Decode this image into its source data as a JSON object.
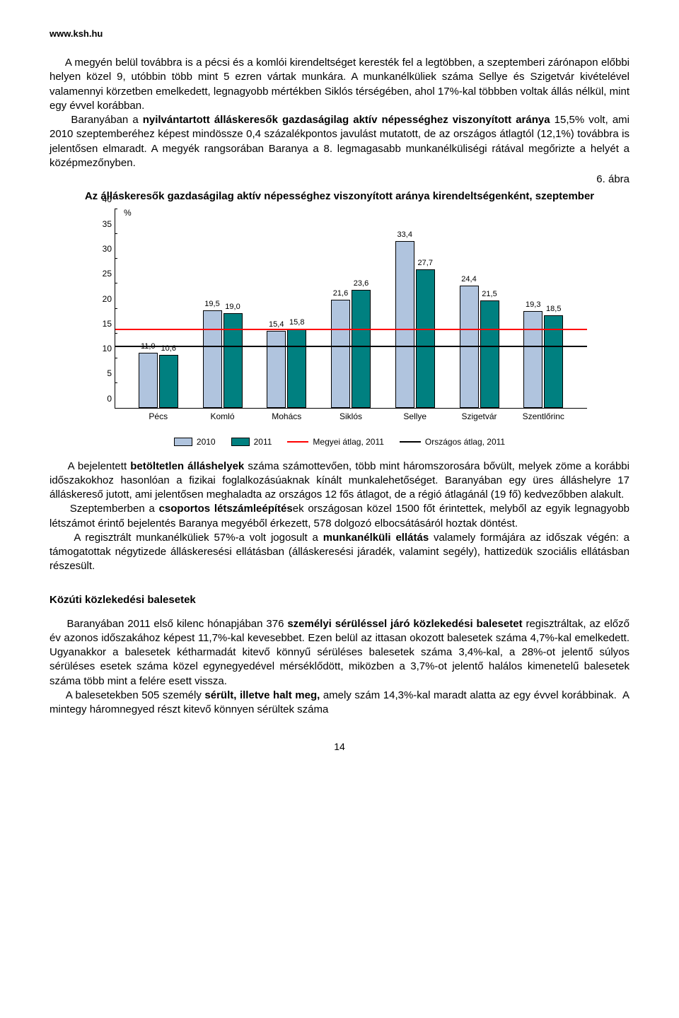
{
  "header": {
    "url": "www.ksh.hu"
  },
  "para1_indent": "     A megyén belül továbbra is a pécsi és a komlói kirendeltséget keresték fel a legtöbben, a szeptemberi zárónapon előbbi helyen közel 9, utóbbin több mint 5 ezren vártak munkára. A munkanélküliek száma Sellye és Szigetvár kivételével valamennyi körzetben emelkedett, legnagyobb mértékben Siklós térségében, ahol 17%-kal többben voltak állás nélkül, mint egy évvel korábban.",
  "para2_run1": "     Baranyában a ",
  "para2_bold": "nyilvántartott álláskeresők gazdaságilag aktív népességhez viszonyított aránya",
  "para2_run2": " 15,5% volt, ami 2010 szeptemberéhez képest mindössze 0,4 százalékpontos javulást mutatott, de az országos átlagtól (12,1%) továbbra is jelentősen elmaradt. A megyék rangsorában Baranya a 8. legmagasabb munkanélküliségi rátával megőrizte a helyét a középmezőnyben.",
  "abra_label": "6. ábra",
  "chart": {
    "title": "Az álláskeresők gazdaságilag aktív népességhez viszonyított aránya kirendeltségenként,\nszeptember",
    "pct_label": "%",
    "ylim_max": 40,
    "ytick_step": 5,
    "yticks": [
      0,
      5,
      10,
      15,
      20,
      25,
      30,
      35,
      40
    ],
    "series_colors": {
      "s2010": "#b0c4de",
      "s2011": "#008080"
    },
    "ref_lines": {
      "megyei": {
        "value": 15.5,
        "color": "#ff0000",
        "label": "Megyei átlag, 2011"
      },
      "orszagos": {
        "value": 12.1,
        "color": "#000000",
        "label": "Országos átlag, 2011"
      }
    },
    "categories": [
      {
        "name": "Pécs",
        "v2010": 11.0,
        "v2011": 10.6,
        "l2010": "11,0",
        "l2011": "10,6"
      },
      {
        "name": "Komló",
        "v2010": 19.5,
        "v2011": 19.0,
        "l2010": "19,5",
        "l2011": "19,0"
      },
      {
        "name": "Mohács",
        "v2010": 15.4,
        "v2011": 15.8,
        "l2010": "15,4",
        "l2011": "15,8"
      },
      {
        "name": "Siklós",
        "v2010": 21.6,
        "v2011": 23.6,
        "l2010": "21,6",
        "l2011": "23,6"
      },
      {
        "name": "Sellye",
        "v2010": 33.4,
        "v2011": 27.7,
        "l2010": "33,4",
        "l2011": "27,7"
      },
      {
        "name": "Szigetvár",
        "v2010": 24.4,
        "v2011": 21.5,
        "l2010": "24,4",
        "l2011": "21,5"
      },
      {
        "name": "Szentlőrinc",
        "v2010": 19.3,
        "v2011": 18.5,
        "l2010": "19,3",
        "l2011": "18,5"
      }
    ],
    "legend": {
      "l2010": "2010",
      "l2011": "2011"
    }
  },
  "para3_run1": "     A bejelentett ",
  "para3_bold1": "betöltetlen álláshelyek",
  "para3_run2": " száma számottevően, több mint háromszorosára bővült, melyek zöme a korábbi időszakokhoz hasonlóan a fizikai foglalkozásúaknak kínált munkalehetőséget. Baranyában egy üres álláshelyre 17 álláskereső jutott, ami jelentősen meghaladta az országos 12 fős átlagot, de a régió átlagánál (19 fő) kedvezőbben alakult.",
  "para4_run1": "     Szeptemberben a ",
  "para4_bold1": "csoportos létszámleépítés",
  "para4_run2": "ek országosan közel 1500 főt érintettek, melyből az egyik legnagyobb létszámot érintő bejelentés Baranya megyéből érkezett, 578 dolgozó elbocsátásáról hoztak döntést.",
  "para5_run1": "     A regisztrált munkanélküliek 57%-a volt jogosult a ",
  "para5_bold1": "munkanélküli ellátás",
  "para5_run2": " valamely formájára az időszak végén: a támogatottak négytizede álláskeresési ellátásban (álláskeresési járadék, valamint segély), hattizedük szociális ellátásban részesült.",
  "section_heading": "Közúti közlekedési balesetek",
  "para6_run1": "     Baranyában 2011 első kilenc hónapjában 376 ",
  "para6_bold1": "személyi sérüléssel járó közlekedési balesetet",
  "para6_run2": " regisztráltak, az előző év azonos időszakához képest 11,7%-kal kevesebbet. Ezen belül az ittasan okozott balesetek száma 4,7%-kal emelkedett. Ugyanakkor a balesetek kétharmadát kitevő könnyű sérüléses balesetek száma 3,4%-kal, a 28%-ot jelentő súlyos sérüléses esetek száma közel egynegyedével mérséklődött, miközben a 3,7%-ot jelentő halálos kimenetelű balesetek száma több mint a felére esett vissza.",
  "para7_run1": "     A balesetekben 505 személy ",
  "para7_bold1": "sérült, illetve halt meg,",
  "para7_run2": " amely szám 14,3%-kal maradt alatta az egy évvel korábbinak.  A mintegy háromnegyed részt kitevő könnyen sérültek száma",
  "page_number": "14"
}
